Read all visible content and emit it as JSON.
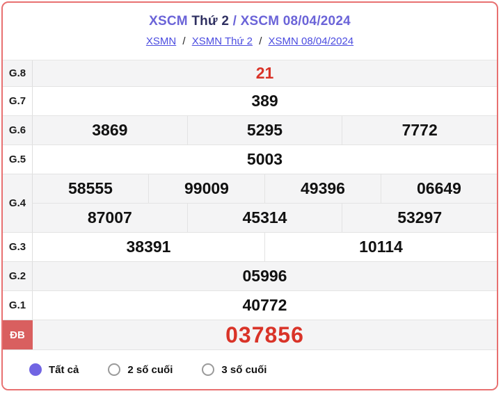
{
  "header": {
    "title_main": "XSCM",
    "title_day": "Thứ 2",
    "title_sep": "/",
    "title_date": "XSCM 08/04/2024",
    "breadcrumb_sep": "/",
    "breadcrumbs": [
      "XSMN",
      "XSMN Thứ 2",
      "XSMN 08/04/2024"
    ]
  },
  "results": {
    "g8": {
      "label": "G.8",
      "values": [
        "21"
      ]
    },
    "g7": {
      "label": "G.7",
      "values": [
        "389"
      ]
    },
    "g6": {
      "label": "G.6",
      "values": [
        "3869",
        "5295",
        "7772"
      ]
    },
    "g5": {
      "label": "G.5",
      "values": [
        "5003"
      ]
    },
    "g4": {
      "label": "G.4",
      "row1": [
        "58555",
        "99009",
        "49396",
        "06649"
      ],
      "row2": [
        "87007",
        "45314",
        "53297"
      ]
    },
    "g3": {
      "label": "G.3",
      "values": [
        "38391",
        "10114"
      ]
    },
    "g2": {
      "label": "G.2",
      "values": [
        "05996"
      ]
    },
    "g1": {
      "label": "G.1",
      "values": [
        "40772"
      ]
    },
    "db": {
      "label": "ĐB",
      "values": [
        "037856"
      ]
    }
  },
  "filters": {
    "options": [
      {
        "label": "Tất cả",
        "selected": true
      },
      {
        "label": "2 số cuối",
        "selected": false
      },
      {
        "label": "3 số cuối",
        "selected": false
      }
    ]
  },
  "colors": {
    "accent_purple": "#6b64d8",
    "title_dark": "#2f3061",
    "link_blue": "#4b4ce0",
    "result_red": "#d93328",
    "special_label_bg": "#d95f5f",
    "card_border": "#e87070",
    "radio_selected": "#7165e3",
    "row_alt_bg": "#f4f4f5"
  }
}
